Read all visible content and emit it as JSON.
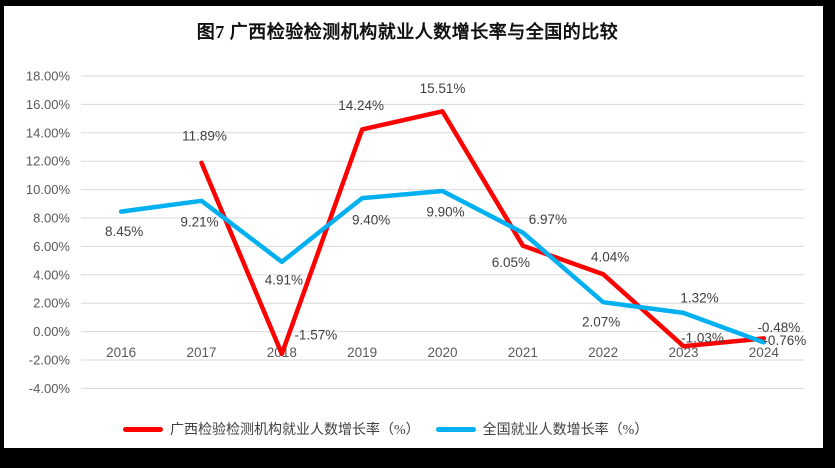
{
  "page": {
    "background": "#ffffff",
    "frame_color": "#000000"
  },
  "chart_data": {
    "type": "line",
    "title": "图7 广西检验检测机构就业人数增长率与全国的比较",
    "categories": [
      "2016",
      "2017",
      "2018",
      "2019",
      "2020",
      "2021",
      "2022",
      "2023",
      "2024"
    ],
    "y_ticks": [
      "18.00%",
      "16.00%",
      "14.00%",
      "12.00%",
      "10.00%",
      "8.00%",
      "6.00%",
      "4.00%",
      "2.00%",
      "0.00%",
      "-2.00%",
      "-4.00%"
    ],
    "ylim": [
      -4,
      18
    ],
    "y_step": 2,
    "grid": true,
    "gridline_color": "#d9d9d9",
    "axis_label_color": "#595959",
    "data_label_color": "#404040",
    "legend_position": "bottom",
    "series": [
      {
        "name": "广西检验检测机构就业人数增长率（%）",
        "color": "#FF0000",
        "values": [
          null,
          11.89,
          -1.57,
          14.24,
          15.51,
          6.05,
          4.04,
          -1.03,
          -0.48
        ],
        "labels": [
          "",
          "11.89%",
          "-1.57%",
          "14.24%",
          "15.51%",
          "6.05%",
          "4.04%",
          "-1.03%",
          "-0.48%"
        ],
        "label_offsets": [
          [
            0,
            0
          ],
          [
            3,
            -27
          ],
          [
            34,
            -19
          ],
          [
            -1,
            -24
          ],
          [
            0,
            -23
          ],
          [
            -12,
            17
          ],
          [
            7,
            -17
          ],
          [
            19,
            -8
          ],
          [
            15,
            -11
          ]
        ]
      },
      {
        "name": "全国就业人数增长率（%）",
        "color": "#00B0F0",
        "values": [
          8.45,
          9.21,
          4.91,
          9.4,
          9.9,
          6.97,
          2.07,
          1.32,
          -0.76
        ],
        "labels": [
          "8.45%",
          "9.21%",
          "4.91%",
          "9.40%",
          "9.90%",
          "6.97%",
          "2.07%",
          "1.32%",
          "-0.76%"
        ],
        "label_offsets": [
          [
            3,
            20
          ],
          [
            -2,
            21
          ],
          [
            2,
            18
          ],
          [
            9,
            22
          ],
          [
            3,
            21
          ],
          [
            25,
            -13
          ],
          [
            -2,
            20
          ],
          [
            16,
            -15
          ],
          [
            21,
            -2
          ]
        ]
      }
    ]
  }
}
